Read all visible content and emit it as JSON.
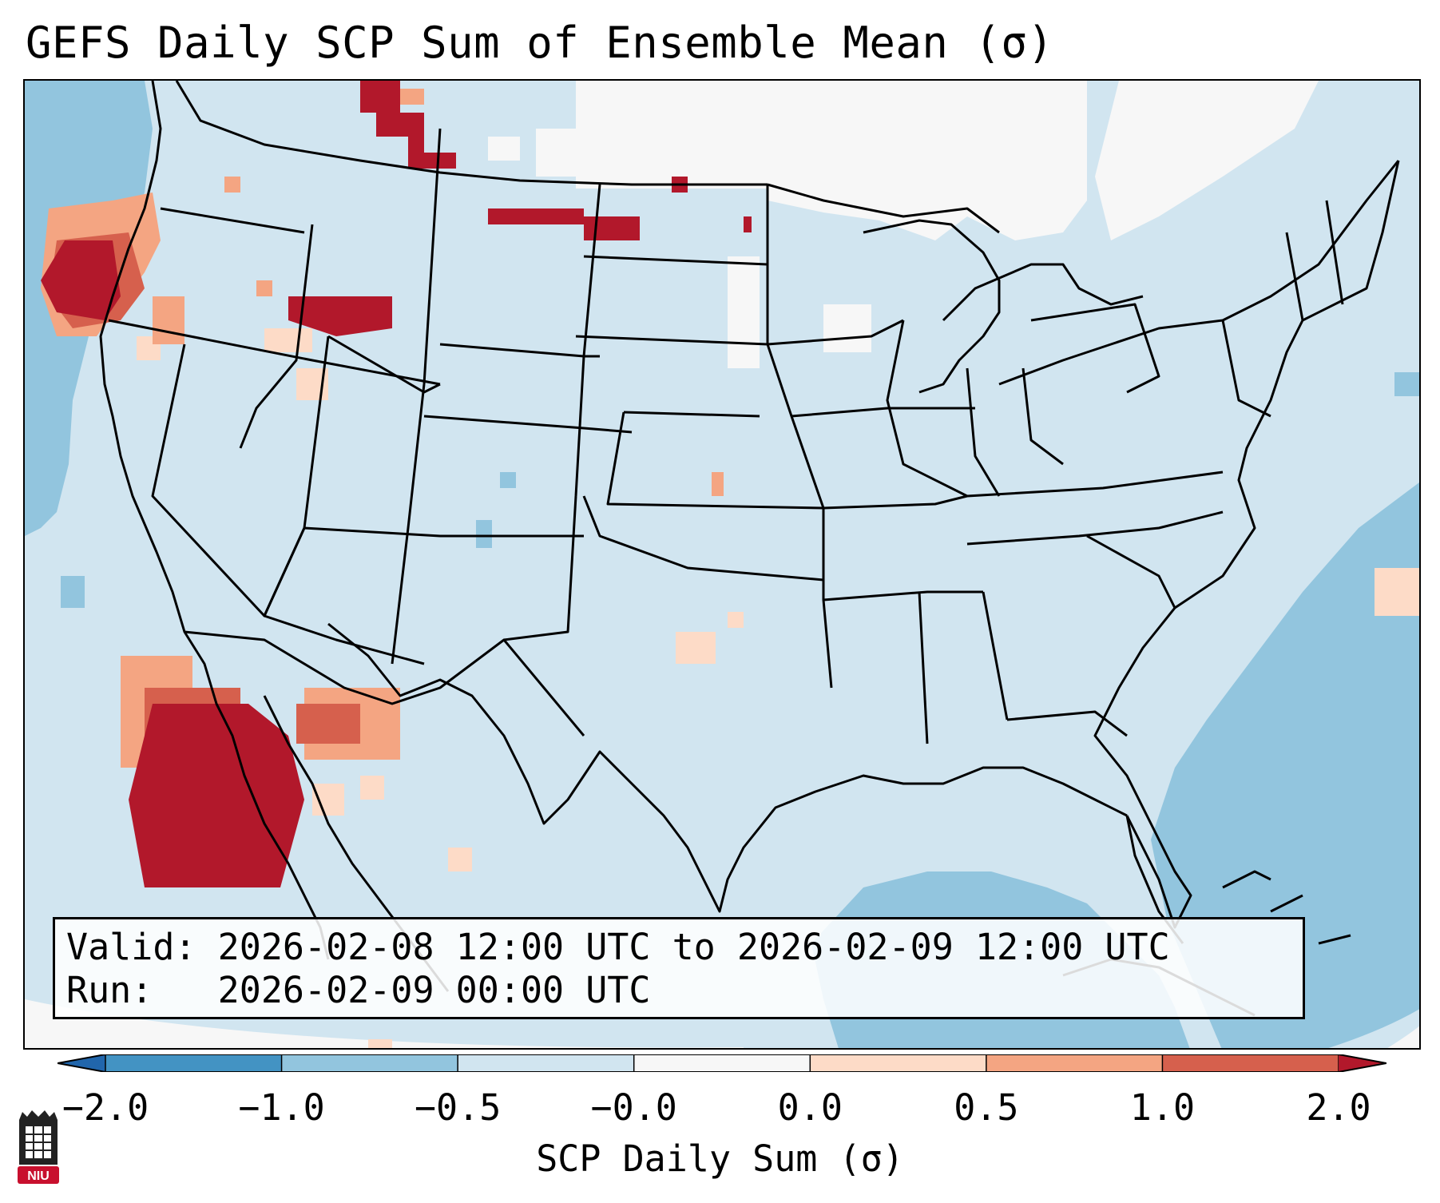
{
  "title": "GEFS Daily SCP Sum of Ensemble Mean (σ)",
  "info": {
    "valid_line": "Valid: 2026-02-08 12:00 UTC to 2026-02-09 12:00 UTC",
    "run_line": "Run:   2026-02-09 00:00 UTC"
  },
  "colorbar": {
    "label": "SCP Daily Sum (σ)",
    "ticks": [
      "−2.0",
      "−1.0",
      "−0.5",
      "−0.0",
      "0.0",
      "0.5",
      "1.0",
      "2.0"
    ],
    "colors": [
      "#4393c3",
      "#92c5de",
      "#d1e5f0",
      "#f7f7f7",
      "#fddbc7",
      "#f4a582",
      "#d6604d",
      "#b2182b"
    ],
    "extend_low": "#2166ac",
    "extend_high": "#b2182b"
  },
  "logo": {
    "text": "NIU"
  },
  "map": {
    "projection": "Lambert Conformal (CONUS)",
    "background_color": "#d1e5f0",
    "ocean_negative_color": "#92c5de",
    "regions": [
      {
        "name": "Pacific Northwest coast",
        "value_band": "≥ 2.0"
      },
      {
        "name": "Southern Idaho",
        "value_band": "≥ 2.0"
      },
      {
        "name": "Northern Montana / North Dakota",
        "value_band": "≥ 2.0"
      },
      {
        "name": "Baja California / Gulf of California",
        "value_band": "≥ 2.0"
      },
      {
        "name": "Southern Oklahoma",
        "value_band": "0.0 to 0.5"
      },
      {
        "name": "Gulf of Mexico / Western Atlantic",
        "value_band": "−1.0 to −0.5"
      },
      {
        "name": "Canadian Prairies / Northern Ontario",
        "value_band": "−0.0 to 0.0"
      }
    ]
  }
}
